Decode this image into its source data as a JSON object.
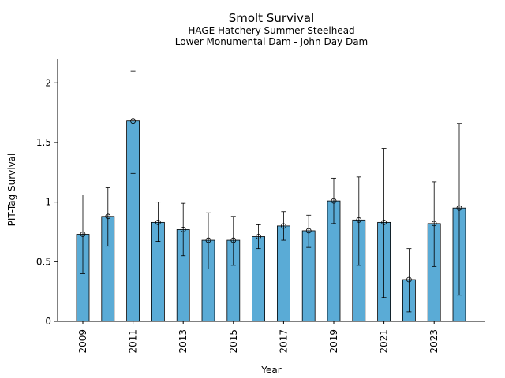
{
  "chart_data": {
    "type": "bar",
    "title": "Smolt Survival",
    "subtitle_lines": [
      "HAGE Hatchery Summer Steelhead",
      "Lower Monumental Dam - John Day Dam"
    ],
    "xlabel": "Year",
    "ylabel": "PIT-Tag Survival",
    "ylim": [
      0,
      2.2
    ],
    "yticks": [
      0,
      0.5,
      1,
      1.5,
      2
    ],
    "ytick_labels": [
      "0",
      "0.5",
      "1",
      "1.5",
      "2"
    ],
    "categories": [
      2009,
      2010,
      2011,
      2012,
      2013,
      2014,
      2015,
      2016,
      2017,
      2018,
      2019,
      2020,
      2021,
      2022,
      2023,
      2024
    ],
    "xtick_labels": [
      "2009",
      "2011",
      "2013",
      "2015",
      "2017",
      "2019",
      "2021",
      "2023"
    ],
    "values": [
      0.73,
      0.88,
      1.68,
      0.83,
      0.77,
      0.68,
      0.68,
      0.71,
      0.8,
      0.76,
      1.01,
      0.85,
      0.83,
      0.35,
      0.82,
      0.95
    ],
    "err_low": [
      0.4,
      0.63,
      1.24,
      0.67,
      0.55,
      0.44,
      0.47,
      0.61,
      0.68,
      0.62,
      0.82,
      0.47,
      0.2,
      0.08,
      0.46,
      0.22
    ],
    "err_high": [
      1.06,
      1.12,
      2.1,
      1.0,
      0.99,
      0.91,
      0.88,
      0.81,
      0.92,
      0.89,
      1.2,
      1.21,
      1.45,
      0.61,
      1.17,
      1.66
    ],
    "grid": false,
    "legend": "none",
    "colors": {
      "bar": "#5aabd6",
      "edge": "#000000"
    }
  }
}
